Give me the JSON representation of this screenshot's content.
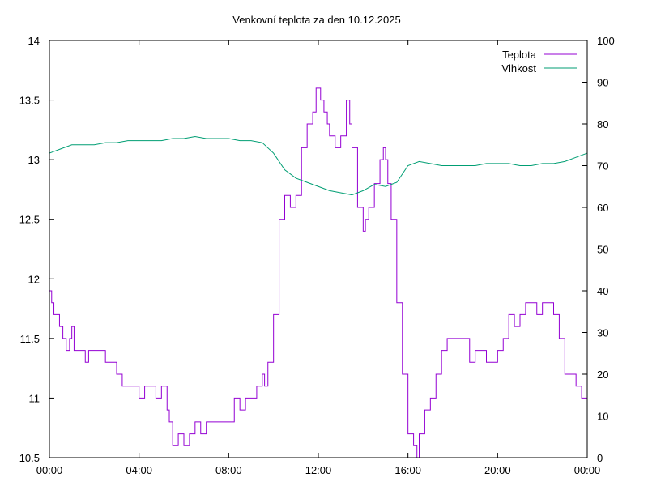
{
  "chart_data": {
    "type": "line",
    "title": "Venkovní teplota za den 10.12.2025",
    "xlabel": "",
    "ylabel": "",
    "y2label": "",
    "x_ticks": [
      "00:00",
      "04:00",
      "08:00",
      "12:00",
      "16:00",
      "20:00",
      "00:00"
    ],
    "x_range_hours": [
      0,
      24
    ],
    "y_left": {
      "range": [
        10.5,
        14
      ],
      "ticks": [
        "10.5",
        "11",
        "11.5",
        "12",
        "12.5",
        "13",
        "13.5",
        "14"
      ]
    },
    "y_right": {
      "range": [
        0,
        100
      ],
      "ticks": [
        "0",
        "10",
        "20",
        "30",
        "40",
        "50",
        "60",
        "70",
        "80",
        "90",
        "100"
      ]
    },
    "grid": false,
    "legend_position": "top-right",
    "series": [
      {
        "name": "Teplota",
        "axis": "left",
        "color": "#9400d3",
        "x": [
          0.0,
          0.1,
          0.2,
          0.3,
          0.45,
          0.6,
          0.75,
          0.9,
          1.0,
          1.1,
          1.25,
          1.5,
          1.6,
          1.75,
          2.0,
          2.5,
          2.75,
          3.0,
          3.25,
          3.5,
          4.0,
          4.25,
          4.5,
          4.75,
          5.0,
          5.25,
          5.35,
          5.5,
          5.75,
          6.0,
          6.25,
          6.5,
          6.75,
          7.0,
          7.25,
          7.5,
          8.0,
          8.25,
          8.5,
          8.75,
          9.0,
          9.25,
          9.5,
          9.6,
          9.75,
          10.0,
          10.25,
          10.5,
          10.75,
          11.0,
          11.25,
          11.5,
          11.75,
          11.9,
          12.0,
          12.1,
          12.25,
          12.4,
          12.5,
          12.75,
          13.0,
          13.25,
          13.4,
          13.5,
          13.75,
          14.0,
          14.1,
          14.25,
          14.5,
          14.75,
          14.9,
          15.0,
          15.1,
          15.25,
          15.5,
          15.75,
          16.0,
          16.25,
          16.4,
          16.5,
          16.75,
          17.0,
          17.25,
          17.5,
          17.75,
          18.0,
          18.25,
          18.5,
          18.75,
          19.0,
          19.25,
          19.5,
          19.75,
          20.0,
          20.25,
          20.5,
          20.75,
          21.0,
          21.25,
          21.5,
          21.75,
          22.0,
          22.25,
          22.5,
          22.75,
          23.0,
          23.25,
          23.5,
          23.75,
          24.0
        ],
        "y": [
          11.9,
          11.8,
          11.7,
          11.7,
          11.6,
          11.5,
          11.4,
          11.5,
          11.6,
          11.4,
          11.4,
          11.4,
          11.3,
          11.4,
          11.4,
          11.3,
          11.3,
          11.2,
          11.1,
          11.1,
          11.0,
          11.1,
          11.1,
          11.0,
          11.1,
          10.9,
          10.8,
          10.6,
          10.7,
          10.6,
          10.7,
          10.8,
          10.7,
          10.8,
          10.8,
          10.8,
          10.8,
          11.0,
          10.9,
          11.0,
          11.0,
          11.1,
          11.2,
          11.1,
          11.3,
          11.7,
          12.5,
          12.7,
          12.6,
          12.7,
          13.1,
          13.3,
          13.4,
          13.6,
          13.6,
          13.5,
          13.4,
          13.3,
          13.2,
          13.1,
          13.2,
          13.5,
          13.3,
          13.1,
          12.6,
          12.4,
          12.5,
          12.6,
          12.8,
          13.0,
          13.1,
          13.0,
          12.8,
          12.5,
          11.8,
          11.2,
          10.7,
          10.6,
          10.5,
          10.7,
          10.9,
          11.0,
          11.2,
          11.4,
          11.5,
          11.5,
          11.5,
          11.5,
          11.3,
          11.4,
          11.4,
          11.3,
          11.3,
          11.4,
          11.5,
          11.7,
          11.6,
          11.7,
          11.8,
          11.8,
          11.7,
          11.8,
          11.8,
          11.7,
          11.5,
          11.2,
          11.2,
          11.1,
          11.0,
          10.8
        ]
      },
      {
        "name": "Vlhkost",
        "axis": "right",
        "color": "#009e73",
        "x": [
          0.0,
          0.5,
          1.0,
          1.5,
          2.0,
          2.5,
          3.0,
          3.5,
          4.0,
          4.5,
          5.0,
          5.5,
          6.0,
          6.5,
          7.0,
          7.5,
          8.0,
          8.5,
          9.0,
          9.5,
          10.0,
          10.5,
          11.0,
          11.5,
          12.0,
          12.5,
          13.0,
          13.5,
          14.0,
          14.5,
          15.0,
          15.5,
          16.0,
          16.5,
          17.0,
          17.5,
          18.0,
          18.5,
          19.0,
          19.5,
          20.0,
          20.5,
          21.0,
          21.5,
          22.0,
          22.5,
          23.0,
          23.5,
          24.0
        ],
        "y": [
          73,
          74,
          75,
          75,
          75,
          75.5,
          75.5,
          76,
          76,
          76,
          76,
          76.5,
          76.5,
          77,
          76.5,
          76.5,
          76.5,
          76,
          76,
          75.5,
          73,
          69,
          67,
          66,
          65,
          64,
          63.5,
          63,
          64,
          65.5,
          65,
          66,
          70,
          71,
          70.5,
          70,
          70,
          70,
          70,
          70.5,
          70.5,
          70.5,
          70,
          70,
          70.5,
          70.5,
          71,
          72,
          73
        ]
      }
    ]
  }
}
